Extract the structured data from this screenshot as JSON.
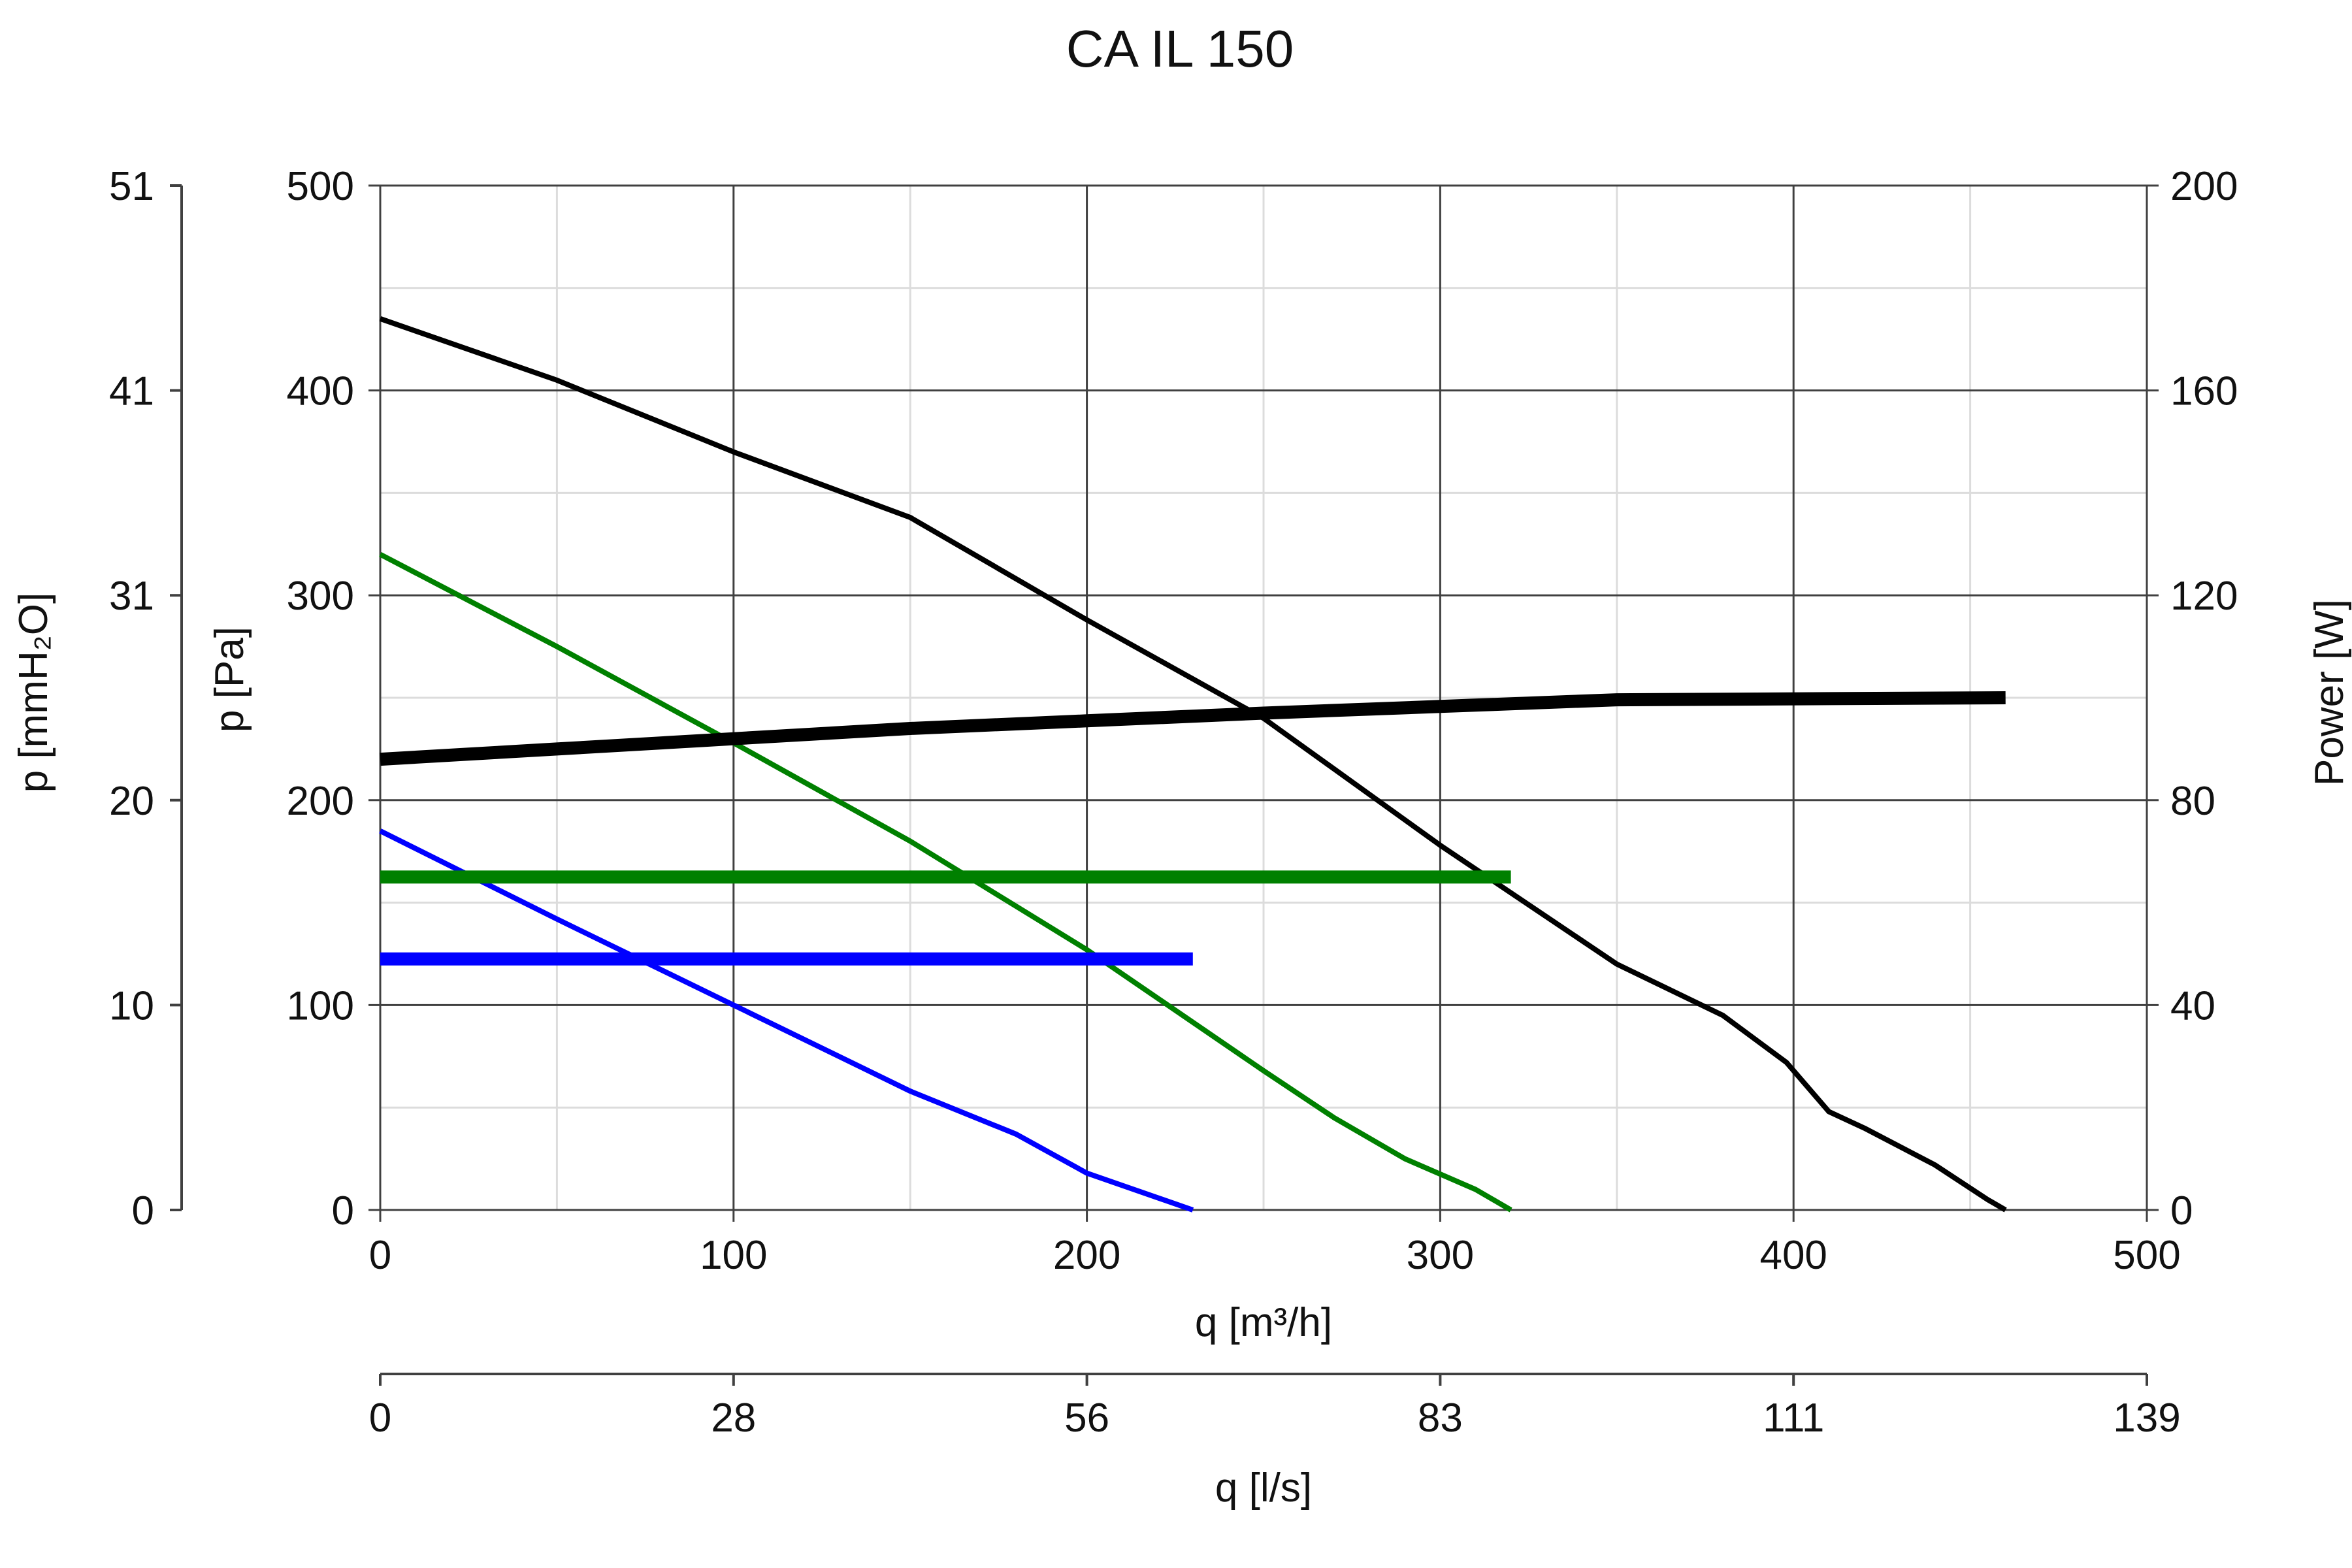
{
  "title": "CA IL 150",
  "chart_data": {
    "type": "line",
    "title": "CA IL 150",
    "x_axis": {
      "label": "q [m³/h]",
      "range": [
        0,
        500
      ],
      "ticks": [
        0,
        100,
        200,
        300,
        400,
        500
      ],
      "tick_labels": [
        "0",
        "100",
        "200",
        "300",
        "400",
        "500"
      ]
    },
    "x2_axis": {
      "label": "q [l/s]",
      "tick_labels": [
        "0",
        "28",
        "56",
        "83",
        "111",
        "139"
      ]
    },
    "y_axis": {
      "label": "p [Pa]",
      "range": [
        0,
        500
      ],
      "ticks": [
        0,
        100,
        200,
        300,
        400,
        500
      ],
      "tick_labels": [
        "0",
        "100",
        "200",
        "300",
        "400",
        "500"
      ]
    },
    "y_left2_axis": {
      "label": "p [mmH₂O]",
      "tick_labels": [
        "0",
        "10",
        "20",
        "31",
        "41",
        "51"
      ]
    },
    "y_right_axis": {
      "label": "Power [W]",
      "range": [
        0,
        200
      ],
      "ticks": [
        0,
        40,
        80,
        120,
        160,
        200
      ],
      "tick_labels": [
        "0",
        "40",
        "80",
        "120",
        "160",
        "200"
      ]
    },
    "grid": {
      "major": true,
      "minor": true
    },
    "series": [
      {
        "kind": "pressure",
        "color": "#000000",
        "points": [
          [
            0,
            435
          ],
          [
            50,
            405
          ],
          [
            100,
            370
          ],
          [
            150,
            338
          ],
          [
            200,
            288
          ],
          [
            250,
            240
          ],
          [
            300,
            178
          ],
          [
            350,
            120
          ],
          [
            380,
            95
          ],
          [
            398,
            72
          ],
          [
            410,
            48
          ],
          [
            420,
            40
          ],
          [
            440,
            22
          ],
          [
            455,
            5
          ],
          [
            460,
            0
          ]
        ]
      },
      {
        "kind": "pressure",
        "color": "#008000",
        "points": [
          [
            0,
            320
          ],
          [
            50,
            275
          ],
          [
            100,
            228
          ],
          [
            150,
            180
          ],
          [
            200,
            127
          ],
          [
            250,
            68
          ],
          [
            270,
            45
          ],
          [
            290,
            25
          ],
          [
            310,
            10
          ],
          [
            320,
            0
          ]
        ]
      },
      {
        "kind": "pressure",
        "color": "#0000ff",
        "points": [
          [
            0,
            185
          ],
          [
            50,
            142
          ],
          [
            100,
            100
          ],
          [
            150,
            58
          ],
          [
            180,
            37
          ],
          [
            200,
            18
          ],
          [
            230,
            0
          ]
        ]
      },
      {
        "kind": "power",
        "color": "#000000",
        "points": [
          [
            0,
            88
          ],
          [
            50,
            90
          ],
          [
            100,
            92
          ],
          [
            150,
            94
          ],
          [
            200,
            95.5
          ],
          [
            250,
            97
          ],
          [
            300,
            98.3
          ],
          [
            350,
            99.6
          ],
          [
            460,
            100
          ]
        ]
      },
      {
        "kind": "power",
        "color": "#008000",
        "points": [
          [
            0,
            65
          ],
          [
            320,
            65
          ]
        ]
      },
      {
        "kind": "power",
        "color": "#0000ff",
        "points": [
          [
            0,
            49
          ],
          [
            230,
            49
          ]
        ]
      }
    ]
  }
}
